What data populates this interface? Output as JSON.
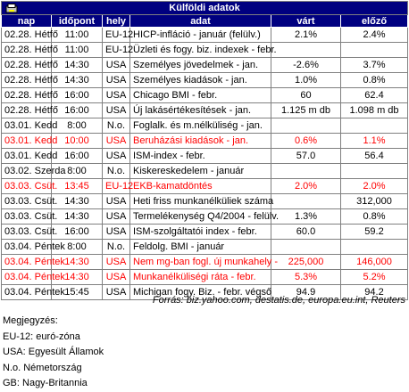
{
  "title": "Külföldi adatok",
  "table": {
    "header": [
      "nap",
      "időpont",
      "hely",
      "adat",
      "várt",
      "előző"
    ],
    "rows": [
      {
        "cells": [
          "02.28. Hétfő",
          "11:00",
          "EU-12",
          "HICP-infláció - január (felülv.)",
          "2.1%",
          "2.4%"
        ],
        "highlight": false
      },
      {
        "cells": [
          "02.28. Hétfő",
          "11:00",
          "EU-12",
          "Üzleti és fogy. biz. indexek - febr.",
          null,
          null
        ],
        "highlight": false
      },
      {
        "cells": [
          "02.28. Hétfő",
          "14:30",
          "USA",
          "Személyes jövedelmek - jan.",
          "-2.6%",
          "3.7%"
        ],
        "highlight": false
      },
      {
        "cells": [
          "02.28. Hétfő",
          "14:30",
          "USA",
          "Személyes kiadások - jan.",
          "1.0%",
          "0.8%"
        ],
        "highlight": false
      },
      {
        "cells": [
          "02.28. Hétfő",
          "16:00",
          "USA",
          "Chicago BMI - febr.",
          "60",
          "62.4"
        ],
        "highlight": false
      },
      {
        "cells": [
          "02.28. Hétfő",
          "16:00",
          "USA",
          "Új lakásértékesítések - jan.",
          "1.125 m db",
          "1.098 m db"
        ],
        "highlight": false
      },
      {
        "cells": [
          "03.01. Kedd",
          "8:00",
          "N.o.",
          "Foglalk. és m.nélküliség - jan.",
          null,
          null
        ],
        "highlight": false
      },
      {
        "cells": [
          "03.01. Kedd",
          "10:00",
          "USA",
          "Beruházási kiadások - jan.",
          "0.6%",
          "1.1%"
        ],
        "highlight": true
      },
      {
        "cells": [
          "03.01. Kedd",
          "16:00",
          "USA",
          "ISM-index - febr.",
          "57.0",
          "56.4"
        ],
        "highlight": false
      },
      {
        "cells": [
          "03.02. Szerda",
          "8:00",
          "N.o.",
          "Kiskereskedelem - január",
          null,
          null
        ],
        "highlight": false
      },
      {
        "cells": [
          "03.03. Csüt.",
          "13:45",
          "EU-12",
          "EKB-kamatdöntés",
          "2.0%",
          "2.0%"
        ],
        "highlight": true
      },
      {
        "cells": [
          "03.03. Csüt.",
          "14:30",
          "USA",
          "Heti friss munkanélküliek száma",
          null,
          "312,000"
        ],
        "highlight": false
      },
      {
        "cells": [
          "03.03. Csüt.",
          "14:30",
          "USA",
          "Termelékenység Q4/2004 - felülv.",
          "1.3%",
          "0.8%"
        ],
        "highlight": false
      },
      {
        "cells": [
          "03.03. Csüt.",
          "16:00",
          "USA",
          "ISM-szolgáltatói index - febr.",
          "60.0",
          "59.2"
        ],
        "highlight": false
      },
      {
        "cells": [
          "03.04. Péntek",
          "8:00",
          "N.o.",
          "Feldolg. BMI - január",
          null,
          null
        ],
        "highlight": false
      },
      {
        "cells": [
          "03.04. Péntek",
          "14:30",
          "USA",
          "Nem mg-ban fogl. új munkahely -",
          "225,000",
          "146,000"
        ],
        "highlight": true
      },
      {
        "cells": [
          "03.04. Péntek",
          "14:30",
          "USA",
          "Munkanélküliségi ráta - febr.",
          "5.3%",
          "5.2%"
        ],
        "highlight": true
      },
      {
        "cells": [
          "03.04. Péntek",
          "15:45",
          "USA",
          "Michigan fogy. Biz. - febr. végső",
          "94.9",
          "94.2"
        ],
        "highlight": false
      }
    ]
  },
  "source": "Forrás: biz.yahoo.com, destatis.de, europa.eu.int, Reuters",
  "notes": [
    "Megjegyzés:",
    "EU-12: euró-zóna",
    "USA: Egyesült Államok",
    "N.o. Németország",
    "GB: Nagy-Britannia"
  ]
}
